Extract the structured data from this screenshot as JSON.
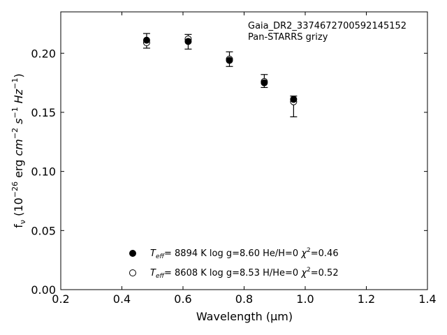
{
  "chart_data": {
    "type": "scatter",
    "xlabel": "Wavelength (μm)",
    "ylabel": "fν (10⁻²⁶ erg cm⁻² s⁻¹ Hz⁻¹)",
    "xlim": [
      0.2,
      1.4
    ],
    "ylim": [
      0.0,
      0.235
    ],
    "xticks": [
      0.2,
      0.4,
      0.6,
      0.8,
      1.0,
      1.2,
      1.4
    ],
    "xtick_labels": [
      "0.2",
      "0.4",
      "0.6",
      "0.8",
      "1.0",
      "1.2",
      "1.4"
    ],
    "yticks": [
      0.0,
      0.05,
      0.1,
      0.15,
      0.2
    ],
    "ytick_labels": [
      "0.00",
      "0.05",
      "0.10",
      "0.15",
      "0.20"
    ],
    "grid": false,
    "annotations": [
      "Gaia_DR2_3374672700592145152",
      "Pan-STARRS grizy"
    ],
    "legend_position": "bottom-center",
    "observed": {
      "x": [
        0.481,
        0.617,
        0.752,
        0.866,
        0.962
      ],
      "y": [
        0.2105,
        0.2097,
        0.195,
        0.1765,
        0.155
      ],
      "yerr": [
        0.0062,
        0.0062,
        0.0062,
        0.0055,
        0.0088
      ]
    },
    "series": [
      {
        "name": "Teff= 8894 K  log g=8.60  He/H=0  χ²=0.46",
        "marker": "filled",
        "x": [
          0.481,
          0.617,
          0.752,
          0.866,
          0.962
        ],
        "y": [
          0.211,
          0.21,
          0.194,
          0.175,
          0.161
        ]
      },
      {
        "name": "Teff= 8608 K  log g=8.53  H/He=0  χ²=0.52",
        "marker": "open",
        "x": [
          0.481,
          0.617,
          0.752,
          0.866,
          0.962
        ],
        "y": [
          0.209,
          0.212,
          0.195,
          0.176,
          0.159
        ]
      }
    ],
    "legend": [
      {
        "teff_value": "8894",
        "rest": "  log g=8.60  He/H=0  ",
        "chi2": "=0.46"
      },
      {
        "teff_value": "8608",
        "rest": "  log g=8.53  H/He=0  ",
        "chi2": "=0.52"
      }
    ]
  }
}
